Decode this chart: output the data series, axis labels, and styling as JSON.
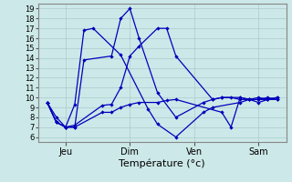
{
  "background_color": "#cce8e8",
  "grid_color": "#aacccc",
  "line_color": "#0000bb",
  "xlabel": "Température (°c)",
  "xlabel_fontsize": 8,
  "yticks": [
    6,
    7,
    8,
    9,
    10,
    11,
    12,
    13,
    14,
    15,
    16,
    17,
    18,
    19
  ],
  "xtick_labels": [
    "Jeu",
    "Dim",
    "Ven",
    "Sam"
  ],
  "xtick_positions": [
    3,
    10,
    17,
    24
  ],
  "xlim": [
    0,
    27
  ],
  "ylim": [
    5.5,
    19.5
  ],
  "s1_x": [
    1,
    2,
    3,
    4,
    5,
    6,
    9,
    12,
    13,
    15,
    18,
    19,
    22,
    23,
    24,
    25,
    26
  ],
  "s1_y": [
    9.5,
    7.5,
    7.0,
    9.3,
    16.8,
    17.0,
    14.3,
    8.8,
    7.3,
    6.0,
    8.5,
    9.0,
    9.5,
    9.8,
    10.0,
    9.8,
    10.0
  ],
  "s2_x": [
    1,
    2,
    3,
    4,
    5,
    8,
    9,
    10,
    11,
    13,
    15,
    18,
    19,
    20,
    22,
    23,
    24,
    25,
    26
  ],
  "s2_y": [
    9.5,
    8.0,
    7.0,
    7.0,
    13.8,
    14.2,
    18.0,
    19.0,
    16.0,
    10.5,
    8.0,
    9.5,
    9.8,
    10.0,
    10.0,
    9.8,
    9.8,
    10.0,
    9.8
  ],
  "s3_x": [
    1,
    2,
    3,
    4,
    7,
    8,
    9,
    10,
    11,
    13,
    14,
    15,
    19,
    20,
    21,
    22,
    23,
    24,
    25,
    26
  ],
  "s3_y": [
    9.5,
    7.5,
    7.0,
    7.2,
    9.2,
    9.3,
    11.0,
    14.2,
    15.2,
    17.0,
    17.0,
    14.2,
    9.8,
    10.0,
    10.0,
    9.8,
    9.8,
    9.8,
    9.8,
    9.8
  ],
  "s4_x": [
    1,
    2,
    3,
    4,
    7,
    8,
    9,
    10,
    11,
    13,
    14,
    15,
    20,
    21,
    22,
    23,
    24,
    25,
    26
  ],
  "s4_y": [
    9.5,
    7.5,
    7.0,
    7.0,
    8.5,
    8.5,
    9.0,
    9.3,
    9.5,
    9.5,
    9.7,
    9.8,
    8.5,
    7.0,
    10.0,
    9.8,
    9.5,
    9.8,
    10.0
  ]
}
